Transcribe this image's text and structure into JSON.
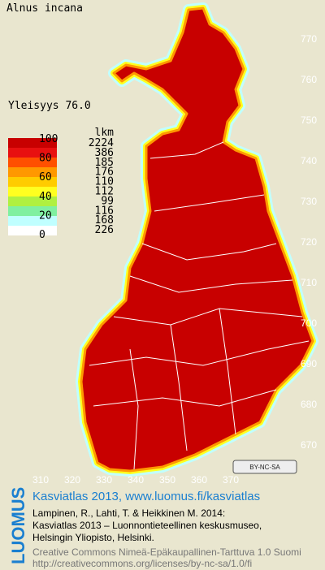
{
  "header": {
    "title": "Alnus incana",
    "frequency": "Yleisyys 76.0"
  },
  "legend": {
    "scale_labels": [
      "100",
      "80",
      "60",
      "40",
      "20",
      "0"
    ],
    "count_header": "lkm",
    "counts": [
      2224,
      386,
      185,
      176,
      110,
      112,
      99,
      116,
      168,
      226
    ],
    "colors": [
      "#c80000",
      "#e81010",
      "#ff5000",
      "#ff9800",
      "#ffcc00",
      "#ffff20",
      "#b0f040",
      "#80f0a0",
      "#c0ffff",
      "#ffffff"
    ]
  },
  "map": {
    "y_labels": [
      "770",
      "760",
      "750",
      "740",
      "730",
      "720",
      "710",
      "700",
      "690",
      "680",
      "670"
    ],
    "x_labels": [
      "310",
      "320",
      "330",
      "340",
      "350",
      "360",
      "370"
    ],
    "license_badge": "BY-NC-SA"
  },
  "footer": {
    "logo": "LUOMUS",
    "link": "Kasviatlas 2013, www.luomus.fi/kasviatlas",
    "citation": [
      "Lampinen, R., Lahti, T. & Heikkinen M. 2014:",
      "Kasviatlas 2013 – Luonnontieteellinen keskusmuseo,",
      "Helsingin Yliopisto, Helsinki."
    ],
    "license": [
      "Creative Commons Nimeä-Epäkaupallinen-Tarttuva 1.0 Suomi",
      "http://creativecommons.org/licenses/by-nc-sa/1.0/fi"
    ]
  }
}
